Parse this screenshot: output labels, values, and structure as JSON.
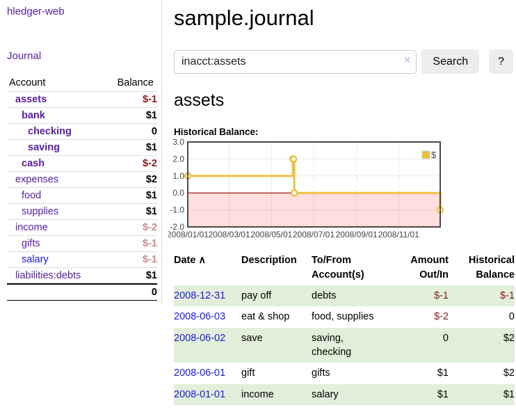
{
  "sidebar": {
    "brand": "hledger-web",
    "journal_label": "Journal",
    "columns": {
      "account": "Account",
      "balance": "Balance"
    },
    "accounts": [
      {
        "name": "assets",
        "depth": 1,
        "balance": "$-1",
        "in_account": true,
        "balance_tone": "negative"
      },
      {
        "name": "bank",
        "depth": 2,
        "balance": "$1",
        "in_account": true,
        "balance_tone": "positive"
      },
      {
        "name": "checking",
        "depth": 3,
        "balance": "0",
        "in_account": true,
        "balance_tone": "positive"
      },
      {
        "name": "saving",
        "depth": 3,
        "balance": "$1",
        "in_account": true,
        "balance_tone": "positive"
      },
      {
        "name": "cash",
        "depth": 2,
        "balance": "$-2",
        "in_account": true,
        "balance_tone": "negative"
      },
      {
        "name": "expenses",
        "depth": 1,
        "balance": "$2",
        "in_account": false,
        "balance_tone": "positive"
      },
      {
        "name": "food",
        "depth": 2,
        "balance": "$1",
        "in_account": false,
        "balance_tone": "positive"
      },
      {
        "name": "supplies",
        "depth": 2,
        "balance": "$1",
        "in_account": false,
        "balance_tone": "positive"
      },
      {
        "name": "income",
        "depth": 1,
        "balance": "$-2",
        "in_account": false,
        "balance_tone": "negative-muted"
      },
      {
        "name": "gifts",
        "depth": 2,
        "balance": "$-1",
        "in_account": false,
        "balance_tone": "negative-muted"
      },
      {
        "name": "salary",
        "depth": 2,
        "balance": "$-1",
        "in_account": false,
        "balance_tone": "negative-muted",
        "link_tone": "unvisited"
      },
      {
        "name": "liabilities:debts",
        "depth": 1,
        "balance": "$1",
        "in_account": false,
        "balance_tone": "positive"
      }
    ],
    "total": "0"
  },
  "header": {
    "title": "sample.journal"
  },
  "search": {
    "query": "inacct:assets",
    "clear_icon": "×",
    "button_label": "Search",
    "help_label": "?"
  },
  "main": {
    "account_heading": "assets",
    "chart_title": "Historical Balance:"
  },
  "chart_data": {
    "type": "line",
    "step": true,
    "title": "Historical Balance",
    "legend": [
      {
        "label": "$",
        "color": "#EDC240"
      }
    ],
    "legend_position": "top-right",
    "grid": true,
    "x_ticks": [
      {
        "label": "2008/01/01",
        "day": 0
      },
      {
        "label": "2008/03/01",
        "day": 60
      },
      {
        "label": "2008/05/01",
        "day": 121
      },
      {
        "label": "2008/07/01",
        "day": 182
      },
      {
        "label": "2008/09/01",
        "day": 244
      },
      {
        "label": "2008/11/01",
        "day": 305
      }
    ],
    "x_range_days": [
      0,
      365
    ],
    "y_ticks": [
      3.0,
      2.0,
      1.0,
      0.0,
      -1.0,
      -2.0
    ],
    "y_range": [
      -2,
      3
    ],
    "points": [
      {
        "date": "2008-01-01",
        "day": 0,
        "value": 1
      },
      {
        "date": "2008-06-01",
        "day": 152,
        "value": 2
      },
      {
        "date": "2008-06-02",
        "day": 153,
        "value": 2
      },
      {
        "date": "2008-06-03",
        "day": 154,
        "value": 0
      },
      {
        "date": "2008-12-31",
        "day": 365,
        "value": -1
      }
    ],
    "series_color": "#EDC240",
    "negative_region_color": "#ffdede",
    "zero_line_color": "#a00000",
    "frame_color": "#4a4a4a"
  },
  "register": {
    "columns": {
      "date": "Date",
      "sort_indicator": "∧",
      "description": "Description",
      "accounts": "To/From Account(s)",
      "amount": "Amount Out/In",
      "balance": "Historical Balance"
    },
    "rows": [
      {
        "date": "2008-12-31",
        "description": "pay off",
        "accounts": "debts",
        "amount": "$-1",
        "amount_tone": "negative",
        "balance": "$-1",
        "balance_tone": "negative"
      },
      {
        "date": "2008-06-03",
        "description": "eat & shop",
        "accounts": "food, supplies",
        "amount": "$-2",
        "amount_tone": "negative",
        "balance": "0",
        "balance_tone": "positive"
      },
      {
        "date": "2008-06-02",
        "description": "save",
        "accounts": "saving,\nchecking",
        "amount": "0",
        "amount_tone": "positive",
        "balance": "$2",
        "balance_tone": "positive"
      },
      {
        "date": "2008-06-01",
        "description": "gift",
        "accounts": "gifts",
        "amount": "$1",
        "amount_tone": "positive",
        "balance": "$2",
        "balance_tone": "positive"
      },
      {
        "date": "2008-01-01",
        "description": "income",
        "accounts": "salary",
        "amount": "$1",
        "amount_tone": "positive",
        "balance": "$1",
        "balance_tone": "positive"
      }
    ]
  },
  "colors": {
    "link_purple": "#5a20a2",
    "link_blue": "#1a1ae0",
    "negative": "#8b1a1a",
    "negative_muted": "#c58c8c",
    "row_green": "#e2efda",
    "button_bg": "#ededed"
  }
}
